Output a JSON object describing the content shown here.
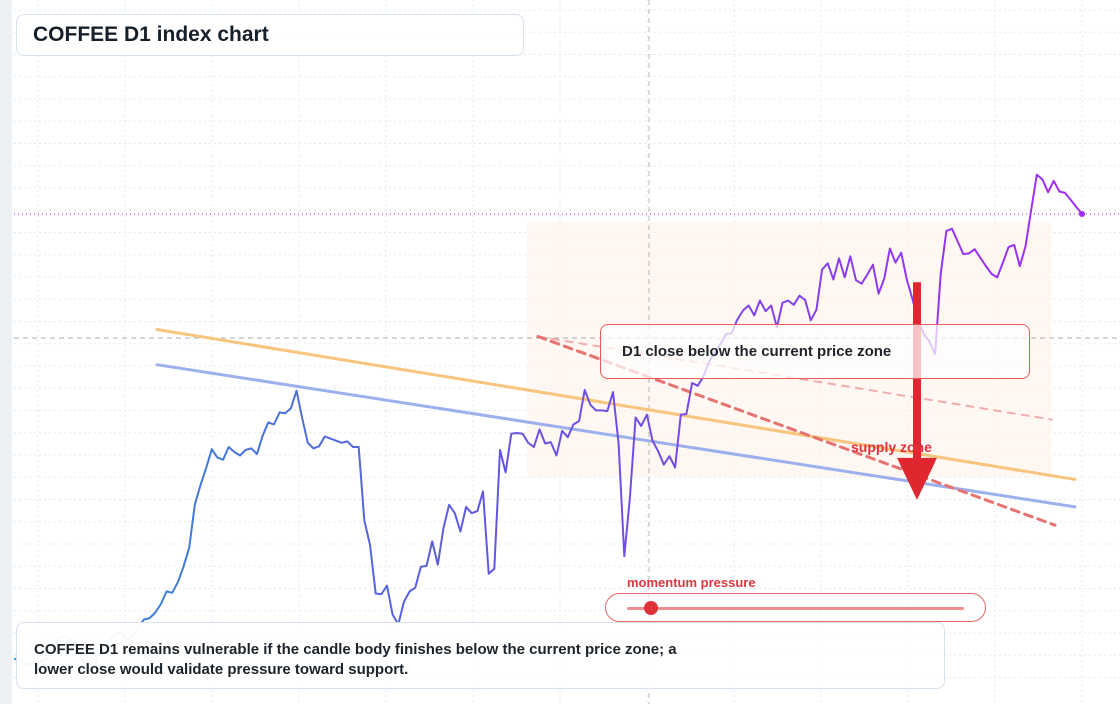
{
  "title": "COFFEE D1 index chart",
  "callout": "D1 close below the current price zone",
  "supply_label": "supply zone",
  "momentum": {
    "label": "momentum pressure",
    "level": 0.07
  },
  "note": "COFFEE D1 remains vulnerable if the candle body finishes below the current price zone; a lower close would validate pressure toward support.",
  "colors": {
    "line_start": "#2d8fd6",
    "line_mid": "#6357e0",
    "line_end": "#a32cf2",
    "trend_orange": "#f8c57e",
    "trend_blue": "#9bb0ec",
    "resistance_red": "#e67272",
    "arrow_red": "#e0262e",
    "last_price_line": "#a52ef2"
  },
  "chart_data": {
    "type": "line",
    "title": "COFFEE D1 index chart",
    "xlabel": "",
    "ylabel": "",
    "grid": true,
    "series": [
      {
        "values": [
          6.4,
          6.4,
          5.7,
          5.7,
          6.0,
          6.0,
          6.6,
          7.8,
          9.4,
          9.6,
          9.0,
          8.3,
          6.6,
          5.2,
          5.3,
          6.9,
          7.6,
          9.2,
          10.0,
          10.1,
          9.0,
          9.7,
          10.9,
          12.0,
          12.2,
          13.0,
          14.2,
          16.0,
          15.8,
          17.3,
          19.5,
          22.2,
          28.3,
          31.1,
          33.5,
          36.2,
          35.0,
          34.7,
          36.5,
          35.8,
          35.3,
          36.1,
          36.3,
          35.5,
          38.1,
          40.0,
          39.7,
          41.4,
          41.3,
          42.0,
          44.5,
          40.6,
          37.1,
          36.3,
          36.6,
          38.0,
          37.7,
          37.4,
          37.1,
          37.3,
          36.5,
          36.5,
          26.1,
          22.6,
          15.7,
          15.6,
          16.8,
          12.7,
          11.3,
          14.5,
          16.0,
          16.5,
          19.5,
          19.6,
          23.1,
          19.8,
          25.0,
          28.3,
          27.1,
          24.5,
          28.0,
          27.1,
          27.4,
          30.2,
          18.5,
          19.2,
          36.1,
          32.9,
          38.4,
          38.5,
          38.4,
          37.1,
          36.5,
          39.0,
          37.0,
          37.2,
          35.3,
          38.8,
          37.9,
          39.7,
          40.2,
          44.6,
          42.5,
          41.7,
          41.7,
          41.6,
          44.3,
          37.0,
          21.0,
          29.3,
          40.7,
          39.5,
          41.1,
          37.4,
          35.9,
          34.0,
          35.2,
          33.6,
          41.1,
          41.2,
          45.6,
          45.2,
          46.5,
          48.6,
          49.9,
          51.1,
          52.5,
          52.7,
          54.6,
          55.9,
          56.6,
          55.2,
          57.3,
          55.8,
          56.6,
          53.5,
          57.0,
          57.3,
          56.7,
          58.0,
          57.4,
          54.5,
          56.0,
          61.7,
          62.6,
          60.3,
          63.3,
          60.6,
          63.6,
          60.2,
          59.7,
          61.0,
          62.4,
          58.3,
          60.4,
          64.7,
          62.7,
          64.1,
          60.3,
          57.5,
          54.4,
          52.6,
          51.5,
          49.7,
          61.1,
          67.2,
          67.5,
          65.7,
          63.9,
          64.0,
          64.6,
          63.4,
          62.2,
          61.1,
          60.6,
          62.7,
          64.9,
          65.2,
          62.2,
          65.0,
          70.1,
          75.2,
          74.5,
          72.7,
          74.3,
          72.8,
          72.6,
          71.6,
          70.6,
          69.6
        ]
      }
    ],
    "trendlines": [
      {
        "name": "orange",
        "y_start": 53.2,
        "y_end": 31.9
      },
      {
        "name": "blue",
        "y_start": 48.2,
        "y_end": 28.0
      },
      {
        "name": "resistance_steep",
        "y_start": 52.2,
        "y_end": 25.4
      },
      {
        "name": "resistance_upper",
        "y_start": 52.2,
        "y_end": 40.4
      }
    ],
    "arrow": {
      "y_from": 59.9,
      "y_to": 29.0
    }
  }
}
